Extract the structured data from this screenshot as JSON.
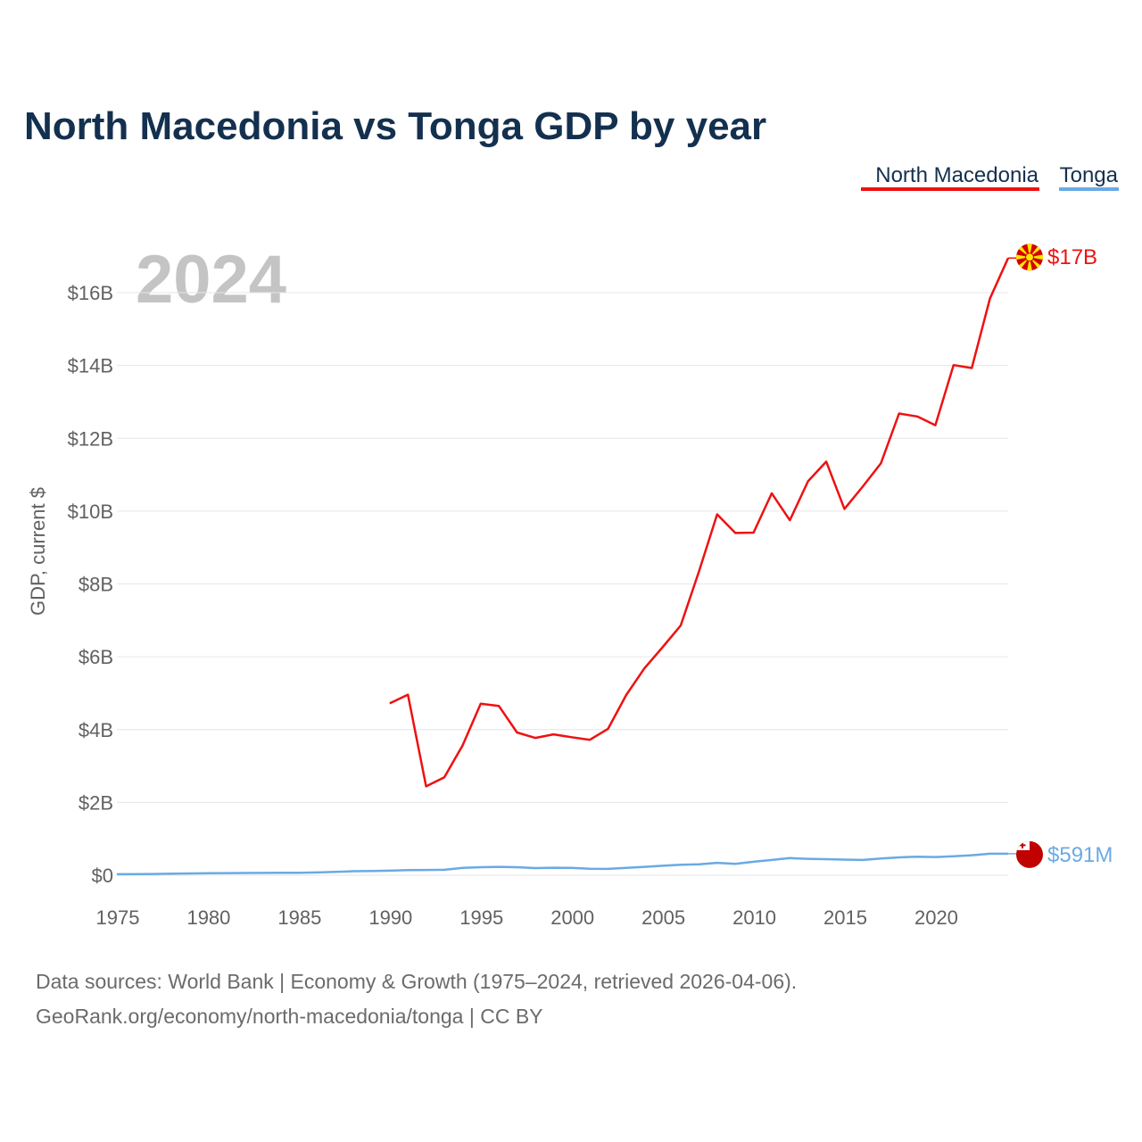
{
  "chart_data": {
    "type": "line",
    "title": "North Macedonia vs Tonga GDP by year",
    "year_label": "2024",
    "ylabel": "GDP, current $",
    "xlabel": "",
    "xlim": [
      1975,
      2024
    ],
    "ylim": [
      0,
      17500000000
    ],
    "x_ticks": [
      1975,
      1980,
      1985,
      1990,
      1995,
      2000,
      2005,
      2010,
      2015,
      2020
    ],
    "x_tick_labels": [
      "1975",
      "1980",
      "1985",
      "1990",
      "1995",
      "2000",
      "2005",
      "2010",
      "2015",
      "2020"
    ],
    "y_ticks": [
      0,
      2000000000,
      4000000000,
      6000000000,
      8000000000,
      10000000000,
      12000000000,
      14000000000,
      16000000000
    ],
    "y_tick_labels": [
      "$0",
      "$2B",
      "$4B",
      "$6B",
      "$8B",
      "$10B",
      "$12B",
      "$14B",
      "$16B"
    ],
    "legend": [
      "North Macedonia",
      "Tonga"
    ],
    "legend_position": "top-right",
    "series": [
      {
        "name": "North Macedonia",
        "color": "#ee1111",
        "end_label": "$17B",
        "flag": "north-macedonia",
        "x": [
          1990,
          1991,
          1992,
          1993,
          1994,
          1995,
          1996,
          1997,
          1998,
          1999,
          2000,
          2001,
          2002,
          2003,
          2004,
          2005,
          2006,
          2007,
          2008,
          2009,
          2010,
          2011,
          2012,
          2013,
          2014,
          2015,
          2016,
          2017,
          2018,
          2019,
          2020,
          2021,
          2022,
          2023,
          2024
        ],
        "values": [
          4720000000,
          4960000000,
          2440000000,
          2690000000,
          3560000000,
          4710000000,
          4650000000,
          3920000000,
          3770000000,
          3870000000,
          3790000000,
          3720000000,
          4020000000,
          4950000000,
          5680000000,
          6260000000,
          6860000000,
          8340000000,
          9910000000,
          9400000000,
          9410000000,
          10490000000,
          9750000000,
          10820000000,
          11360000000,
          10060000000,
          10670000000,
          11310000000,
          12680000000,
          12600000000,
          12360000000,
          14010000000,
          13930000000,
          15840000000,
          16950000000
        ]
      },
      {
        "name": "Tonga",
        "color": "#6aaae4",
        "end_label": "$591M",
        "flag": "tonga",
        "x": [
          1975,
          1976,
          1977,
          1978,
          1979,
          1980,
          1981,
          1982,
          1983,
          1984,
          1985,
          1986,
          1987,
          1988,
          1989,
          1990,
          1991,
          1992,
          1993,
          1994,
          1995,
          1996,
          1997,
          1998,
          1999,
          2000,
          2001,
          2002,
          2003,
          2004,
          2005,
          2006,
          2007,
          2008,
          2009,
          2010,
          2011,
          2012,
          2013,
          2014,
          2015,
          2016,
          2017,
          2018,
          2019,
          2020,
          2021,
          2022,
          2023,
          2024
        ],
        "values": [
          27000000,
          30000000,
          35000000,
          42000000,
          48000000,
          56000000,
          60000000,
          62000000,
          64000000,
          66000000,
          68000000,
          75000000,
          90000000,
          110000000,
          115000000,
          125000000,
          140000000,
          145000000,
          150000000,
          200000000,
          220000000,
          230000000,
          220000000,
          195000000,
          205000000,
          200000000,
          180000000,
          175000000,
          200000000,
          230000000,
          260000000,
          290000000,
          300000000,
          340000000,
          310000000,
          370000000,
          420000000,
          470000000,
          450000000,
          440000000,
          430000000,
          420000000,
          460000000,
          490000000,
          510000000,
          500000000,
          520000000,
          550000000,
          591000000,
          591000000
        ]
      }
    ]
  },
  "source": {
    "line1": "Data sources: World Bank | Economy & Growth (1975–2024, retrieved 2026-04-06).",
    "line2": "GeoRank.org/economy/north-macedonia/tonga | CC BY"
  }
}
